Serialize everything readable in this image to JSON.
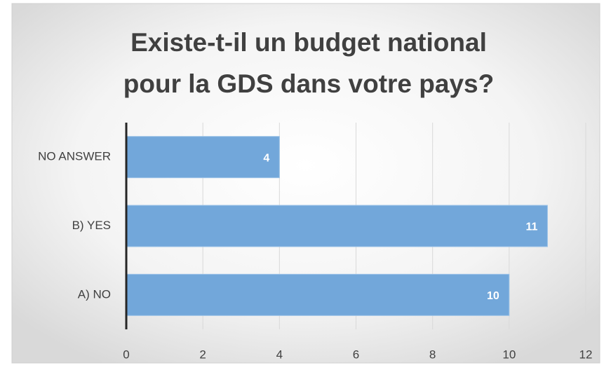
{
  "chart_data": {
    "type": "barh",
    "title": [
      "Existe-t-il un budget national",
      "pour la GDS dans votre pays?"
    ],
    "categories": [
      "NO ANSWER",
      "B) YES",
      "A) NO"
    ],
    "values": [
      4,
      11,
      10
    ],
    "color": "#72a7da",
    "xlim": [
      0,
      12
    ],
    "xticks": [
      0,
      2,
      4,
      6,
      8,
      10,
      12
    ],
    "grid": true
  }
}
